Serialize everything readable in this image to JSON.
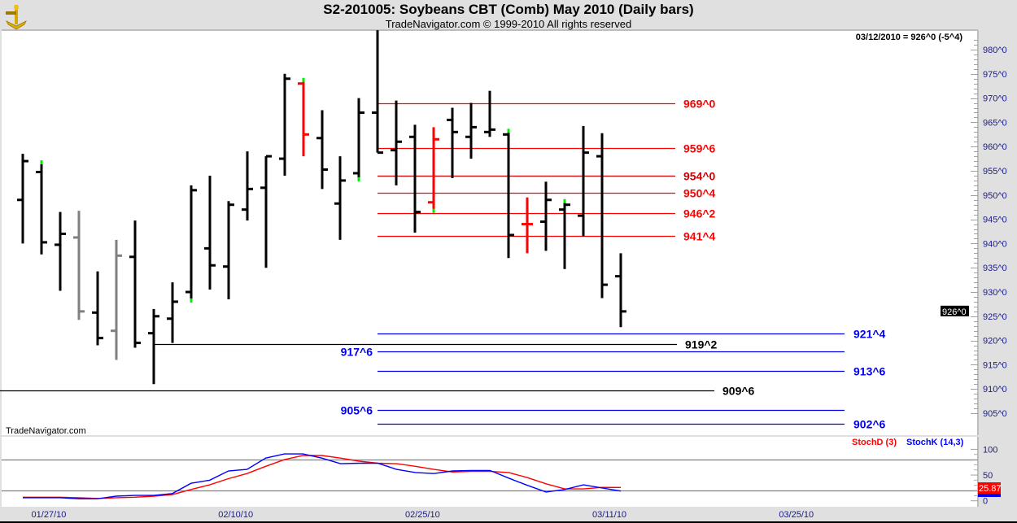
{
  "header": {
    "title": "S2-201005:  Soybeans CBT (Comb) May 2010  (Daily bars)",
    "subtitle": "TradeNavigator.com © 1999-2010 All rights reserved",
    "logo_icon": "sextant-icon"
  },
  "watermark": "TradeNavigator.com",
  "readout": "03/12/2010 = 926^0 (-5^4)",
  "chart_data": [
    {
      "type": "ohlc",
      "title": "S2-201005:  Soybeans CBT (Comb) May 2010  (Daily bars)",
      "y_axis": {
        "min": 905,
        "max": 980,
        "tick_labels": [
          "980^0",
          "975^0",
          "970^0",
          "965^0",
          "960^0",
          "955^0",
          "950^0",
          "945^0",
          "940^0",
          "935^0",
          "930^0",
          "925^0",
          "920^0",
          "915^0",
          "910^0",
          "905^0"
        ]
      },
      "x_axis": {
        "tick_labels": [
          {
            "date": "01/27/10",
            "label": "01/27/10"
          },
          {
            "date": "02/10/10",
            "label": "02/10/10"
          },
          {
            "date": "02/25/10",
            "label": "02/25/10"
          },
          {
            "date": "03/11/10",
            "label": "03/11/10"
          },
          {
            "date": "03/25/10",
            "label": "03/25/10"
          }
        ]
      },
      "last_price_label": "926^0",
      "colors": {
        "up": "#000000",
        "gray": "#808080",
        "red": "#ff0000",
        "marker": "#00ee00"
      },
      "bars": [
        {
          "date": "01/26/10",
          "o": 949,
          "h": 958.5,
          "l": 940,
          "c": 957,
          "color": "black"
        },
        {
          "date": "01/27/10",
          "o": 954.75,
          "h": 957,
          "l": 937.75,
          "c": 940.25,
          "color": "black",
          "mark": "high"
        },
        {
          "date": "01/28/10",
          "o": 939.75,
          "h": 946.5,
          "l": 930.25,
          "c": 942,
          "color": "black"
        },
        {
          "date": "01/29/10",
          "o": 941.25,
          "h": 946.75,
          "l": 924.25,
          "c": 926,
          "color": "gray"
        },
        {
          "date": "02/01/10",
          "o": 925.75,
          "h": 934.25,
          "l": 919,
          "c": 920.5,
          "color": "black"
        },
        {
          "date": "02/02/10",
          "o": 922,
          "h": 940.75,
          "l": 916,
          "c": 937.5,
          "color": "gray"
        },
        {
          "date": "02/03/10",
          "o": 937.25,
          "h": 944.75,
          "l": 918.5,
          "c": 919.5,
          "color": "black"
        },
        {
          "date": "02/04/10",
          "o": 921.5,
          "h": 926.5,
          "l": 911,
          "c": 925,
          "color": "black"
        },
        {
          "date": "02/05/10",
          "o": 924.5,
          "h": 932,
          "l": 919.5,
          "c": 928,
          "color": "black"
        },
        {
          "date": "02/08/10",
          "o": 930,
          "h": 952,
          "l": 928,
          "c": 951,
          "color": "black",
          "mark": "low"
        },
        {
          "date": "02/09/10",
          "o": 939,
          "h": 954,
          "l": 930.5,
          "c": 935.5,
          "color": "black"
        },
        {
          "date": "02/10/10",
          "o": 935.25,
          "h": 948.75,
          "l": 928.5,
          "c": 948,
          "color": "black"
        },
        {
          "date": "02/11/10",
          "o": 947,
          "h": 959,
          "l": 944.75,
          "c": 951.25,
          "color": "black"
        },
        {
          "date": "02/12/10",
          "o": 951.5,
          "h": 958,
          "l": 935,
          "c": 958,
          "color": "black"
        },
        {
          "date": "02/16/10",
          "o": 957.5,
          "h": 975,
          "l": 954,
          "c": 974,
          "color": "black"
        },
        {
          "date": "02/17/10",
          "o": 973,
          "h": 974,
          "l": 958,
          "c": 962.5,
          "color": "red",
          "mark": "high"
        },
        {
          "date": "02/18/10",
          "o": 961.75,
          "h": 967.5,
          "l": 951.25,
          "c": 955.25,
          "color": "black"
        },
        {
          "date": "02/19/10",
          "o": 948.25,
          "h": 958,
          "l": 940.75,
          "c": 953,
          "color": "black"
        },
        {
          "date": "02/22/10",
          "o": 954.5,
          "h": 970,
          "l": 953,
          "c": 967,
          "color": "black",
          "mark": "low"
        },
        {
          "date": "02/23/10",
          "o": 967,
          "h": 984,
          "l": 958.75,
          "c": 958.75,
          "color": "black"
        },
        {
          "date": "02/24/10",
          "o": 959.25,
          "h": 969.5,
          "l": 952,
          "c": 961,
          "color": "black"
        },
        {
          "date": "02/25/10",
          "o": 962,
          "h": 964.5,
          "l": 942.25,
          "c": 946.5,
          "color": "black"
        },
        {
          "date": "02/26/10",
          "o": 948.5,
          "h": 964,
          "l": 946.5,
          "c": 961.5,
          "color": "red",
          "mark": "low"
        },
        {
          "date": "03/01/10",
          "o": 965.5,
          "h": 968,
          "l": 953.5,
          "c": 963,
          "color": "black"
        },
        {
          "date": "03/02/10",
          "o": 962,
          "h": 969,
          "l": 957.5,
          "c": 964,
          "color": "black"
        },
        {
          "date": "03/03/10",
          "o": 963,
          "h": 971.5,
          "l": 962,
          "c": 963.5,
          "color": "black"
        },
        {
          "date": "03/04/10",
          "o": 962.5,
          "h": 963.5,
          "l": 937,
          "c": 941.75,
          "color": "black",
          "mark": "high"
        },
        {
          "date": "03/05/10",
          "o": 944,
          "h": 949.5,
          "l": 938,
          "c": 944,
          "color": "red"
        },
        {
          "date": "03/08/10",
          "o": 944.5,
          "h": 952.75,
          "l": 938.5,
          "c": 949,
          "color": "black"
        },
        {
          "date": "03/09/10",
          "o": 947,
          "h": 949,
          "l": 934.75,
          "c": 948,
          "color": "black",
          "mark": "high"
        },
        {
          "date": "03/10/10",
          "o": 945.75,
          "h": 964.25,
          "l": 941.5,
          "c": 958.75,
          "color": "black"
        },
        {
          "date": "03/11/10",
          "o": 958,
          "h": 962.75,
          "l": 928.75,
          "c": 931.5,
          "color": "black"
        },
        {
          "date": "03/12/10",
          "o": 933.25,
          "h": 938,
          "l": 922.75,
          "c": 926,
          "color": "black"
        }
      ],
      "levels": [
        {
          "price": 969,
          "label": "969^0",
          "color": "#ff0000"
        },
        {
          "price": 959.75,
          "label": "959^6",
          "color": "#ff0000"
        },
        {
          "price": 954,
          "label": "954^0",
          "color": "#cc0000"
        },
        {
          "price": 950.5,
          "label": "950^4",
          "color": "#ff0000"
        },
        {
          "price": 946.25,
          "label": "946^2",
          "color": "#ff0000"
        },
        {
          "price": 941.5,
          "label": "941^4",
          "color": "#ff0000"
        },
        {
          "price": 921.5,
          "label": "921^4",
          "color": "#0000ee"
        },
        {
          "price": 919.25,
          "label": "919^2",
          "color": "#000000"
        },
        {
          "price": 917.75,
          "label": "917^6",
          "color": "#0000ee"
        },
        {
          "price": 913.75,
          "label": "913^6",
          "color": "#0000ee"
        },
        {
          "price": 909.75,
          "label": "909^6",
          "color": "#000000"
        },
        {
          "price": 905.75,
          "label": "905^6",
          "color": "#0000ee"
        },
        {
          "price": 902.75,
          "label": "902^6",
          "color": "#0000ee"
        }
      ]
    },
    {
      "type": "line",
      "ylim": [
        0,
        100
      ],
      "reference_lines": [
        20,
        80
      ],
      "y_tick_labels": [
        "100",
        "50",
        "0"
      ],
      "last_value_label": "25.87",
      "series": [
        {
          "name": "StochD (3)",
          "color": "#ff0000",
          "values": [
            7,
            7,
            7,
            6,
            4.6,
            6,
            7,
            9,
            12,
            22,
            31,
            43,
            53,
            67,
            80,
            88,
            88,
            83,
            77,
            73,
            72,
            67,
            61,
            56,
            57,
            57,
            55,
            45,
            33,
            23,
            23,
            26,
            25.87
          ]
        },
        {
          "name": "StochK (14,3)",
          "color": "#0000ff",
          "values": [
            6,
            6,
            6,
            4,
            4,
            9,
            10.5,
            10.5,
            14,
            34,
            40,
            58,
            61,
            83,
            91,
            91,
            83,
            72,
            73,
            73,
            61,
            55,
            53,
            58,
            59,
            59,
            44,
            30,
            17,
            22,
            31,
            25,
            19
          ]
        }
      ]
    }
  ]
}
